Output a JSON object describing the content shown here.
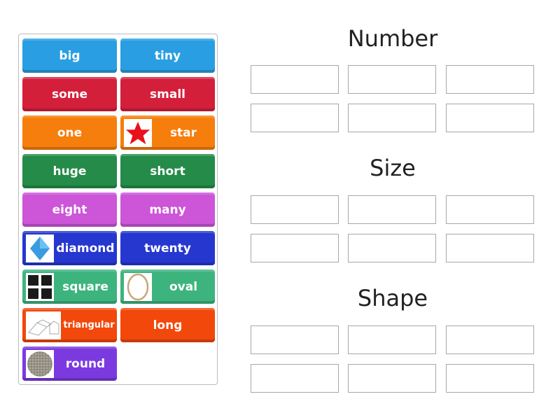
{
  "tiles": [
    {
      "label": "big",
      "color": "#2a9ee2"
    },
    {
      "label": "tiny",
      "color": "#2a9ee2"
    },
    {
      "label": "some",
      "color": "#d41f3a"
    },
    {
      "label": "small",
      "color": "#d41f3a"
    },
    {
      "label": "one",
      "color": "#f67e0c"
    },
    {
      "label": "star",
      "color": "#f67e0c",
      "icon": "star-icon"
    },
    {
      "label": "huge",
      "color": "#248b48"
    },
    {
      "label": "short",
      "color": "#248b48"
    },
    {
      "label": "eight",
      "color": "#cc55d8"
    },
    {
      "label": "many",
      "color": "#cc55d8"
    },
    {
      "label": "diamond",
      "color": "#2637d0",
      "icon": "diamond-icon"
    },
    {
      "label": "twenty",
      "color": "#2637d0"
    },
    {
      "label": "square",
      "color": "#3db47e",
      "icon": "squares-icon"
    },
    {
      "label": "oval",
      "color": "#3db47e",
      "icon": "oval-icon"
    },
    {
      "label": "triangular",
      "color": "#f2480c",
      "icon": "triangular-prism-icon"
    },
    {
      "label": "long",
      "color": "#f2480c"
    },
    {
      "label": "round",
      "color": "#7b3ae0",
      "icon": "round-stone-icon"
    }
  ],
  "groups": [
    {
      "title": "Number",
      "slots": 6
    },
    {
      "title": "Size",
      "slots": 6
    },
    {
      "title": "Shape",
      "slots": 6
    }
  ]
}
